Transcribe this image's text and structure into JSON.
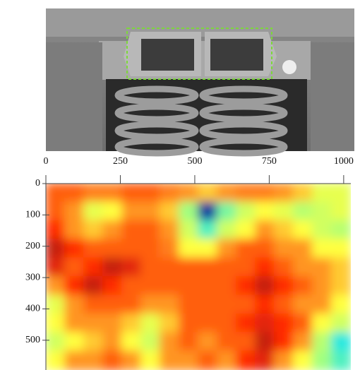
{
  "chart_data": {
    "type": "heatmap",
    "xlim": [
      0,
      1024
    ],
    "ylim": [
      0,
      595
    ],
    "y_inverted": true,
    "xticks": [
      0,
      250,
      500,
      750,
      1000
    ],
    "yticks": [
      0,
      100,
      200,
      300,
      400,
      500
    ],
    "zlim": [
      0,
      1
    ],
    "colormap": [
      "#000080",
      "#00e0ff",
      "#a0ff80",
      "#ffff40",
      "#ff2a00",
      "#8b1a1a"
    ],
    "z": [
      [
        0.75,
        0.75,
        0.72,
        0.72,
        0.75,
        0.75,
        0.72,
        0.7,
        0.65,
        0.7,
        0.72,
        0.72,
        0.7,
        0.65,
        0.55,
        0.55
      ],
      [
        0.75,
        0.7,
        0.55,
        0.6,
        0.7,
        0.7,
        0.65,
        0.4,
        0.05,
        0.35,
        0.5,
        0.6,
        0.55,
        0.45,
        0.5,
        0.55
      ],
      [
        0.8,
        0.7,
        0.65,
        0.7,
        0.75,
        0.75,
        0.7,
        0.5,
        0.3,
        0.5,
        0.6,
        0.7,
        0.65,
        0.6,
        0.5,
        0.45
      ],
      [
        0.9,
        0.8,
        0.75,
        0.75,
        0.75,
        0.75,
        0.72,
        0.6,
        0.6,
        0.7,
        0.75,
        0.75,
        0.7,
        0.7,
        0.6,
        0.6
      ],
      [
        0.85,
        0.75,
        0.8,
        0.9,
        0.85,
        0.75,
        0.75,
        0.75,
        0.75,
        0.75,
        0.75,
        0.8,
        0.75,
        0.7,
        0.7,
        0.65
      ],
      [
        0.7,
        0.8,
        0.9,
        0.8,
        0.75,
        0.75,
        0.75,
        0.75,
        0.75,
        0.75,
        0.8,
        0.9,
        0.8,
        0.75,
        0.7,
        0.65
      ],
      [
        0.55,
        0.7,
        0.75,
        0.75,
        0.75,
        0.7,
        0.7,
        0.75,
        0.75,
        0.75,
        0.75,
        0.8,
        0.75,
        0.7,
        0.7,
        0.6
      ],
      [
        0.6,
        0.7,
        0.7,
        0.7,
        0.65,
        0.55,
        0.65,
        0.75,
        0.75,
        0.75,
        0.8,
        0.85,
        0.8,
        0.75,
        0.6,
        0.5
      ],
      [
        0.5,
        0.6,
        0.65,
        0.7,
        0.6,
        0.5,
        0.7,
        0.75,
        0.7,
        0.75,
        0.75,
        0.9,
        0.8,
        0.7,
        0.45,
        0.25
      ],
      [
        0.6,
        0.7,
        0.7,
        0.75,
        0.7,
        0.6,
        0.7,
        0.7,
        0.75,
        0.7,
        0.8,
        0.85,
        0.7,
        0.6,
        0.4,
        0.3
      ]
    ]
  }
}
